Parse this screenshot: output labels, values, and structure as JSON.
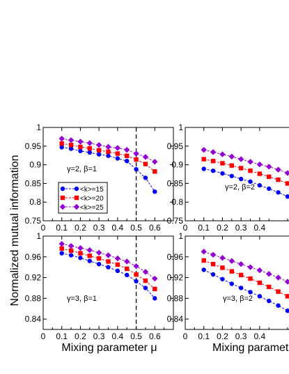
{
  "figure": {
    "ylabel": "Normalized mutual information",
    "xlabel": "Mixing parameter  μ"
  },
  "chart_data": [
    {
      "type": "line",
      "x": [
        0.1,
        0.15,
        0.2,
        0.25,
        0.3,
        0.35,
        0.4,
        0.45,
        0.5,
        0.55,
        0.6
      ],
      "xlim": [
        0,
        0.7
      ],
      "ylim": [
        0.75,
        1
      ],
      "xticks": [
        "0",
        "0.1",
        "0.2",
        "0.3",
        "0.4",
        "0.5",
        "0.6"
      ],
      "yticks": [
        "0.75",
        "0.8",
        "0.85",
        "0.9",
        "0.95",
        "1"
      ],
      "annotation": "γ=2,  β=1",
      "vline": 0.5,
      "legend": true,
      "legend_position": "lower-left",
      "series": [
        {
          "name": "<k>=15",
          "color": "#0000ff",
          "marker": "circle",
          "values": [
            0.947,
            0.943,
            0.937,
            0.933,
            0.928,
            0.924,
            0.917,
            0.91,
            0.888,
            0.865,
            0.828
          ]
        },
        {
          "name": "<k>=20",
          "color": "#ff0000",
          "marker": "square",
          "values": [
            0.957,
            0.953,
            0.948,
            0.944,
            0.939,
            0.935,
            0.93,
            0.924,
            0.914,
            0.902,
            0.882
          ]
        },
        {
          "name": "<k>=25",
          "color": "#9400d3",
          "marker": "diamond",
          "values": [
            0.97,
            0.966,
            0.962,
            0.958,
            0.953,
            0.948,
            0.945,
            0.94,
            0.93,
            0.921,
            0.908
          ]
        }
      ]
    },
    {
      "type": "line",
      "x": [
        0.1,
        0.15,
        0.2,
        0.25,
        0.3,
        0.35,
        0.4,
        0.45,
        0.5,
        0.55,
        0.6
      ],
      "xlim": [
        0,
        0.7
      ],
      "ylim": [
        0.75,
        1
      ],
      "xticks": [
        "0",
        "0.1",
        "0.2",
        "0.3",
        "0.4"
      ],
      "yticks": [
        "0.75",
        "0.8",
        "0.85",
        "0.9",
        "0.95",
        "1"
      ],
      "annotation": "γ=2,  β=2",
      "series": [
        {
          "name": "<k>=15",
          "color": "#0000ff",
          "marker": "circle",
          "values": [
            0.889,
            0.884,
            0.877,
            0.87,
            0.862,
            0.855,
            0.845,
            0.836,
            0.826,
            0.815,
            0.8
          ]
        },
        {
          "name": "<k>=20",
          "color": "#ff0000",
          "marker": "square",
          "values": [
            0.915,
            0.91,
            0.904,
            0.898,
            0.891,
            0.884,
            0.876,
            0.868,
            0.86,
            0.85,
            0.838
          ]
        },
        {
          "name": "<k>=25",
          "color": "#9400d3",
          "marker": "diamond",
          "values": [
            0.94,
            0.934,
            0.928,
            0.922,
            0.915,
            0.908,
            0.901,
            0.895,
            0.887,
            0.878,
            0.867
          ]
        }
      ]
    },
    {
      "type": "line",
      "x": [
        0.1,
        0.15,
        0.2,
        0.25,
        0.3,
        0.35,
        0.4,
        0.45,
        0.5,
        0.55,
        0.6
      ],
      "xlim": [
        0,
        0.7
      ],
      "ylim": [
        0.82,
        1
      ],
      "xticks": [
        "0",
        "0.1",
        "0.2",
        "0.3",
        "0.4",
        "0.5",
        "0.6"
      ],
      "yticks": [
        "0.84",
        "0.88",
        "0.92",
        "0.96",
        "1"
      ],
      "annotation": "γ=3,  β=1",
      "vline": 0.5,
      "series": [
        {
          "name": "<k>=15",
          "color": "#0000ff",
          "marker": "circle",
          "values": [
            0.967,
            0.963,
            0.958,
            0.952,
            0.946,
            0.94,
            0.933,
            0.925,
            0.913,
            0.9,
            0.88
          ]
        },
        {
          "name": "<k>=20",
          "color": "#ff0000",
          "marker": "square",
          "values": [
            0.976,
            0.972,
            0.967,
            0.962,
            0.957,
            0.951,
            0.945,
            0.937,
            0.926,
            0.914,
            0.898
          ]
        },
        {
          "name": "<k>=25",
          "color": "#9400d3",
          "marker": "diamond",
          "values": [
            0.985,
            0.981,
            0.977,
            0.973,
            0.968,
            0.963,
            0.957,
            0.951,
            0.942,
            0.931,
            0.918
          ]
        }
      ]
    },
    {
      "type": "line",
      "x": [
        0.1,
        0.15,
        0.2,
        0.25,
        0.3,
        0.35,
        0.4,
        0.45,
        0.5,
        0.55,
        0.6
      ],
      "xlim": [
        0,
        0.7
      ],
      "ylim": [
        0.82,
        1
      ],
      "xticks": [
        "0",
        "0.1",
        "0.2",
        "0.3",
        "0.4"
      ],
      "yticks": [
        "0.84",
        "0.88",
        "0.92",
        "0.96",
        "1"
      ],
      "annotation": "γ=3,  β=2",
      "series": [
        {
          "name": "<k>=15",
          "color": "#0000ff",
          "marker": "circle",
          "values": [
            0.935,
            0.926,
            0.917,
            0.908,
            0.9,
            0.892,
            0.884,
            0.875,
            0.866,
            0.856,
            0.845
          ]
        },
        {
          "name": "<k>=20",
          "color": "#ff0000",
          "marker": "square",
          "values": [
            0.953,
            0.946,
            0.939,
            0.932,
            0.925,
            0.918,
            0.91,
            0.902,
            0.893,
            0.884,
            0.874
          ]
        },
        {
          "name": "<k>=25",
          "color": "#9400d3",
          "marker": "diamond",
          "values": [
            0.97,
            0.964,
            0.958,
            0.952,
            0.946,
            0.94,
            0.934,
            0.927,
            0.92,
            0.912,
            0.903
          ]
        }
      ]
    }
  ]
}
